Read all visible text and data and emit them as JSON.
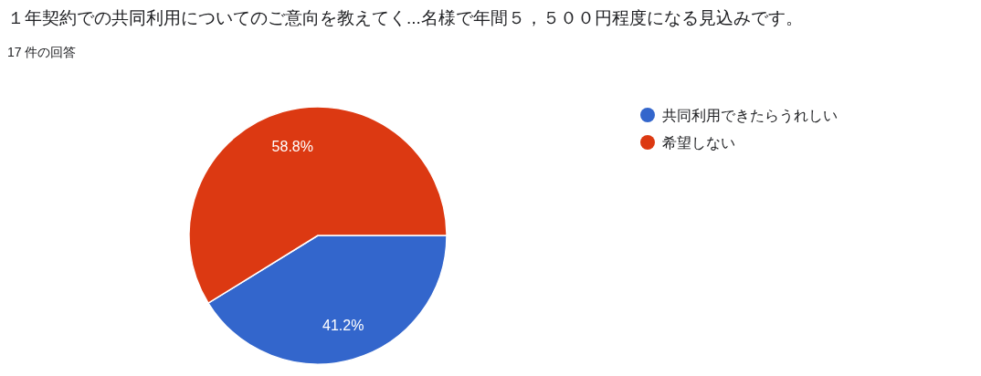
{
  "chart_data": {
    "type": "pie",
    "title": "１年契約での共同利用についてのご意向を教えてく...名様で年間５，５００円程度になる見込みです。",
    "subtitle": "17 件の回答",
    "categories": [
      "共同利用できたらうれしい",
      "希望しない"
    ],
    "values": [
      41.2,
      58.8
    ],
    "colors": [
      "#3366cc",
      "#dc3912"
    ],
    "value_labels": [
      "41.2%",
      "58.8%"
    ],
    "legend": "right"
  }
}
